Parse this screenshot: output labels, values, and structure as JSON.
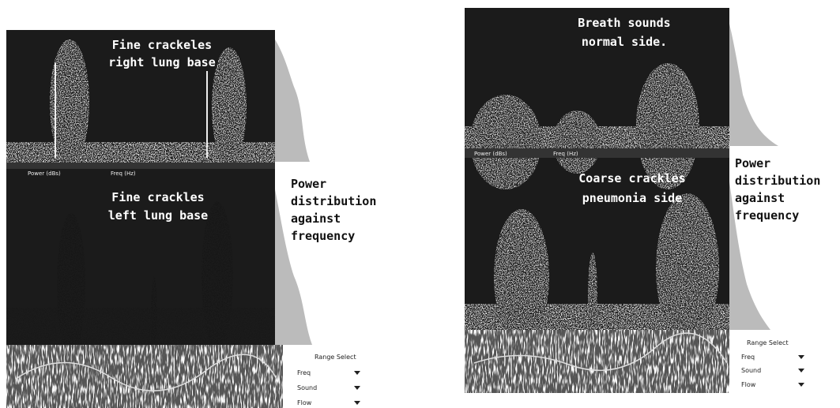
{
  "left": {
    "top_caption": [
      "Fine crackeles",
      "right lung base"
    ],
    "bottom_caption": [
      "Fine crackles",
      "left lung base"
    ],
    "axis_labels": [
      "Power (dBs)",
      "Freq (Hz)"
    ],
    "power_caption": [
      "Power",
      "distribution",
      "against",
      "frequency"
    ],
    "range_select": {
      "title": "Range Select",
      "rows": [
        "Freq",
        "Sound",
        "Flow"
      ]
    }
  },
  "right": {
    "top_caption": [
      "Breath sounds",
      "normal side."
    ],
    "bottom_caption": [
      "Coarse crackles",
      "pneumonia side"
    ],
    "axis_labels": [
      "Power (dBs)",
      "Freq (Hz)"
    ],
    "power_caption": [
      "Power",
      "distribution",
      "against",
      "frequency"
    ],
    "range_select": {
      "title": "Range Select",
      "rows": [
        "Freq",
        "Sound",
        "Flow"
      ]
    }
  }
}
